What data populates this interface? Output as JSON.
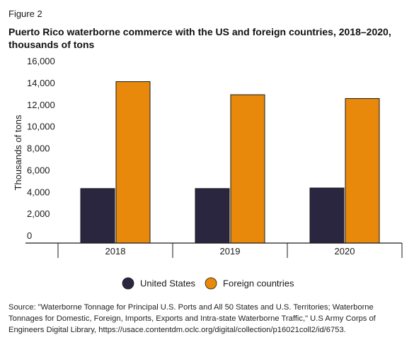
{
  "figure_label": "Figure 2",
  "title": "Puerto Rico waterborne commerce with the US and foreign countries, 2018–2020, thousands of tons",
  "source": "Source: \"Waterborne Tonnage for Principal U.S. Ports and All 50 States and U.S. Territories; Waterborne Tonnages for Domestic, Foreign, Imports, Exports and Intra-state Waterborne Traffic,\" U.S Army Corps of Engineers Digital Library, https://usace.contentdm.oclc.org/digital/collection/p16021coll2/id/6753.",
  "chart_data": {
    "type": "bar",
    "categories": [
      "2018",
      "2019",
      "2020"
    ],
    "series": [
      {
        "name": "United States",
        "values": [
          5000,
          5000,
          5050
        ],
        "color": "#2a2640"
      },
      {
        "name": "Foreign countries",
        "values": [
          14800,
          13600,
          13250
        ],
        "color": "#e8890c"
      }
    ],
    "ylabel": "Thousands of tons",
    "xlabel": "",
    "ylim": [
      0,
      16000
    ],
    "yticks": [
      0,
      2000,
      4000,
      6000,
      8000,
      10000,
      12000,
      14000,
      16000
    ],
    "ytick_labels": [
      "0",
      "2,000",
      "4,000",
      "6,000",
      "8,000",
      "10,000",
      "12,000",
      "14,000",
      "16,000"
    ],
    "legend_position": "bottom-center",
    "grid": false
  }
}
